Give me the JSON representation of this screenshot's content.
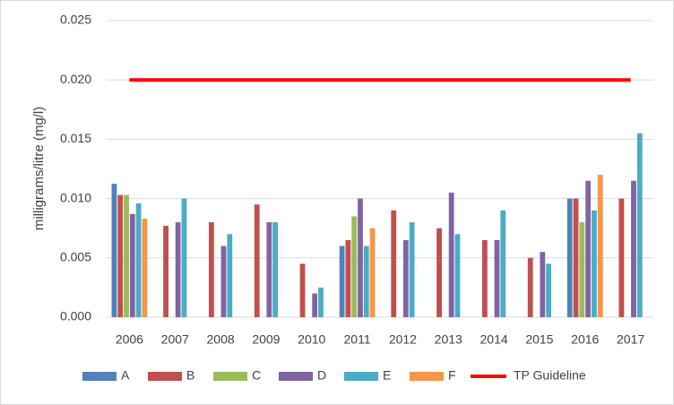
{
  "chart_data": {
    "type": "bar",
    "y_label": "milligrams/litre (mg/l)",
    "categories": [
      "2006",
      "2007",
      "2008",
      "2009",
      "2010",
      "2011",
      "2012",
      "2013",
      "2014",
      "2015",
      "2016",
      "2017"
    ],
    "series": [
      {
        "name": "A",
        "color": "#4f81bd",
        "values": [
          0.01125,
          null,
          null,
          null,
          null,
          0.006,
          null,
          null,
          null,
          null,
          0.01,
          null
        ]
      },
      {
        "name": "B",
        "color": "#c0504d",
        "values": [
          0.0103,
          0.0077,
          0.008,
          0.0095,
          0.0045,
          0.0065,
          0.009,
          0.0075,
          0.0065,
          0.005,
          0.01,
          0.01
        ]
      },
      {
        "name": "C",
        "color": "#9bbb59",
        "values": [
          0.0103,
          null,
          null,
          null,
          null,
          0.0085,
          null,
          null,
          null,
          null,
          0.008,
          null
        ]
      },
      {
        "name": "D",
        "color": "#8064a2",
        "values": [
          0.0087,
          0.008,
          0.006,
          0.008,
          0.002,
          0.01,
          0.0065,
          0.0105,
          0.0065,
          0.0055,
          0.0115,
          0.0115
        ]
      },
      {
        "name": "E",
        "color": "#4bacc6",
        "values": [
          0.0096,
          0.01,
          0.007,
          0.008,
          0.0025,
          0.006,
          0.008,
          0.007,
          0.009,
          0.0045,
          0.009,
          0.0155
        ]
      },
      {
        "name": "F",
        "color": "#f79646",
        "values": [
          0.0083,
          null,
          null,
          null,
          null,
          0.0075,
          null,
          null,
          null,
          null,
          0.012,
          null
        ]
      },
      {
        "name": "TP Guideline",
        "type": "line",
        "color": "#ff0000",
        "values": [
          0.02,
          0.02,
          0.02,
          0.02,
          0.02,
          0.02,
          0.02,
          0.02,
          0.02,
          0.02,
          0.02,
          0.02
        ]
      }
    ],
    "ylim": [
      0,
      0.025
    ],
    "yticks": [
      {
        "value": 0,
        "label": "0.000"
      },
      {
        "value": 0.005,
        "label": "0.005"
      },
      {
        "value": 0.01,
        "label": "0.010"
      },
      {
        "value": 0.015,
        "label": "0.015"
      },
      {
        "value": 0.02,
        "label": "0.020"
      },
      {
        "value": 0.025,
        "label": "0.025"
      }
    ],
    "grid": true,
    "legend": "bottom"
  }
}
